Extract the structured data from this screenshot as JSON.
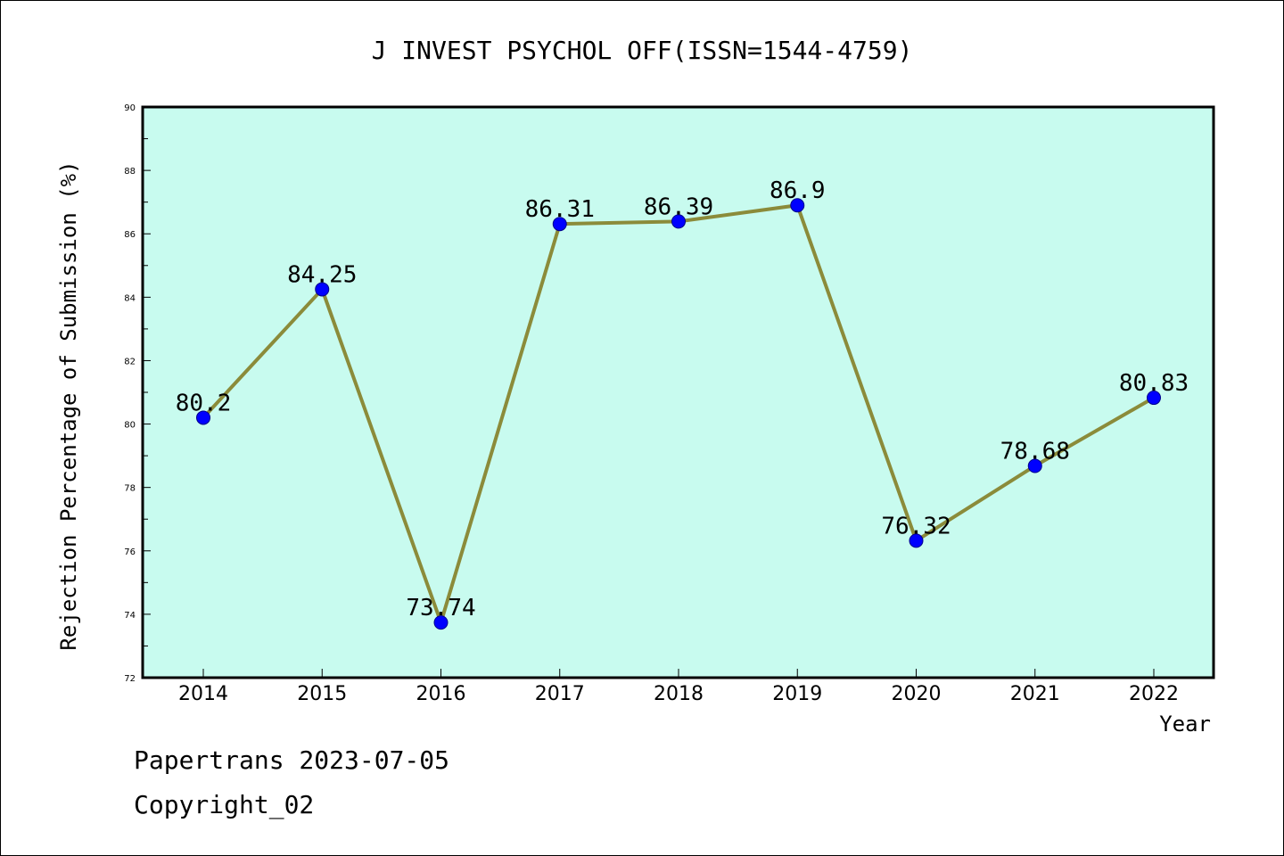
{
  "chart_data": {
    "type": "line",
    "title": "J INVEST PSYCHOL OFF(ISSN=1544-4759)",
    "xlabel": "Year",
    "ylabel": "Rejection Percentage of Submission (%)",
    "categories": [
      "2014",
      "2015",
      "2016",
      "2017",
      "2018",
      "2019",
      "2020",
      "2021",
      "2022"
    ],
    "series": [
      {
        "values": [
          80.2,
          84.25,
          73.74,
          86.31,
          86.39,
          86.9,
          76.32,
          78.68,
          80.83
        ],
        "labels": [
          "80.2",
          "84.25",
          "73.74",
          "86.31",
          "86.39",
          "86.9",
          "76.32",
          "78.68",
          "80.83"
        ]
      }
    ],
    "ylim": [
      72,
      90
    ],
    "yticks": [
      "72",
      "74",
      "76",
      "78",
      "80",
      "82",
      "84",
      "86",
      "88",
      "90"
    ],
    "grid": false,
    "colors": {
      "plot_background": "#c8fbef",
      "line": "#8b8b3a",
      "marker_fill": "#0000ff",
      "marker_edge": "#00008b",
      "axis": "#000000"
    }
  },
  "footer": {
    "source": "Papertrans 2023-07-05",
    "copyright": "Copyright_02"
  }
}
